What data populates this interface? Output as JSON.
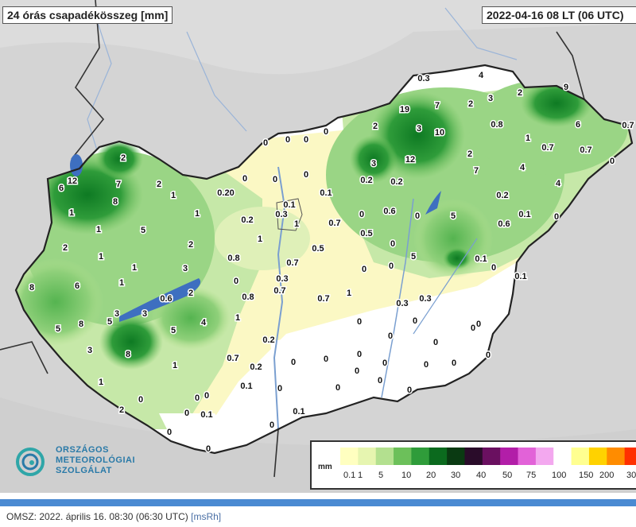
{
  "map": {
    "title": "24 órás csapadékösszeg [mm]",
    "timestamp": "2022-04-16 08 LT  (06 UTC)",
    "stations": [
      {
        "v": "0.3"
      },
      {
        "v": "4"
      },
      {
        "v": "9"
      },
      {
        "v": "19"
      },
      {
        "v": "7"
      },
      {
        "v": "2"
      },
      {
        "v": "3"
      },
      {
        "v": "2"
      },
      {
        "v": "3"
      },
      {
        "v": "10"
      },
      {
        "v": "0.8"
      },
      {
        "v": "6"
      },
      {
        "v": "0.7"
      },
      {
        "v": "1"
      },
      {
        "v": "0.7"
      },
      {
        "v": "0.7"
      },
      {
        "v": "0"
      },
      {
        "v": "0"
      },
      {
        "v": "0"
      },
      {
        "v": "0"
      },
      {
        "v": "2"
      },
      {
        "v": "12"
      },
      {
        "v": "2"
      },
      {
        "v": "0"
      },
      {
        "v": "4"
      },
      {
        "v": "3"
      },
      {
        "v": "0"
      },
      {
        "v": "0"
      },
      {
        "v": "0"
      },
      {
        "v": "0.2"
      },
      {
        "v": "0.2"
      },
      {
        "v": "7"
      },
      {
        "v": "4"
      },
      {
        "v": "2"
      },
      {
        "v": "12"
      },
      {
        "v": "6"
      },
      {
        "v": "7"
      },
      {
        "v": "2"
      },
      {
        "v": "0.20"
      },
      {
        "v": "0.1"
      },
      {
        "v": "0.2"
      },
      {
        "v": "0.1"
      },
      {
        "v": "0.3"
      },
      {
        "v": "0.6"
      },
      {
        "v": "0"
      },
      {
        "v": "5"
      },
      {
        "v": "0.6"
      },
      {
        "v": "0"
      },
      {
        "v": "8"
      },
      {
        "v": "1"
      },
      {
        "v": "1"
      },
      {
        "v": "0.2"
      },
      {
        "v": "1"
      },
      {
        "v": "0.7"
      },
      {
        "v": "0"
      },
      {
        "v": "1"
      },
      {
        "v": "5"
      },
      {
        "v": "1"
      },
      {
        "v": "0.5"
      },
      {
        "v": "0.1"
      },
      {
        "v": "2"
      },
      {
        "v": "2"
      },
      {
        "v": "0.5"
      },
      {
        "v": "0"
      },
      {
        "v": "5"
      },
      {
        "v": "0.8"
      },
      {
        "v": "1"
      },
      {
        "v": "0.7"
      },
      {
        "v": "0"
      },
      {
        "v": "0"
      },
      {
        "v": "1"
      },
      {
        "v": "0"
      },
      {
        "v": "1"
      },
      {
        "v": "3"
      },
      {
        "v": "0.3"
      },
      {
        "v": "0.1"
      },
      {
        "v": "0.1"
      },
      {
        "v": "8"
      },
      {
        "v": "1"
      },
      {
        "v": "0"
      },
      {
        "v": "0.7"
      },
      {
        "v": "1"
      },
      {
        "v": "6"
      },
      {
        "v": "2"
      },
      {
        "v": "0.6"
      },
      {
        "v": "0.8"
      },
      {
        "v": "0.7"
      },
      {
        "v": "0.3"
      },
      {
        "v": "0.3"
      },
      {
        "v": "5"
      },
      {
        "v": "3"
      },
      {
        "v": "3"
      },
      {
        "v": "1"
      },
      {
        "v": "0"
      },
      {
        "v": "0"
      },
      {
        "v": "8"
      },
      {
        "v": "5"
      },
      {
        "v": "4"
      },
      {
        "v": "0"
      },
      {
        "v": "0"
      },
      {
        "v": "0"
      },
      {
        "v": "5"
      },
      {
        "v": "3"
      },
      {
        "v": "0.2"
      },
      {
        "v": "0"
      },
      {
        "v": "0"
      },
      {
        "v": "8"
      },
      {
        "v": "0.7"
      },
      {
        "v": "0"
      },
      {
        "v": "0"
      },
      {
        "v": "0"
      },
      {
        "v": "0"
      },
      {
        "v": "1"
      },
      {
        "v": "0.2"
      },
      {
        "v": "0"
      },
      {
        "v": "0"
      },
      {
        "v": "0"
      },
      {
        "v": "0"
      },
      {
        "v": "0"
      },
      {
        "v": "1"
      },
      {
        "v": "0.1"
      },
      {
        "v": "0"
      },
      {
        "v": "0"
      },
      {
        "v": "0"
      },
      {
        "v": "0"
      },
      {
        "v": "0"
      },
      {
        "v": "0"
      },
      {
        "v": "2"
      },
      {
        "v": "0"
      },
      {
        "v": "0.1"
      },
      {
        "v": "0.1"
      },
      {
        "v": "0"
      },
      {
        "v": "0.2"
      },
      {
        "v": "0"
      },
      {
        "v": "0.2"
      }
    ]
  },
  "legend": {
    "unit": "mm",
    "ticks": [
      "0.1",
      "1",
      "5",
      "10",
      "20",
      "30",
      "40",
      "50",
      "75",
      "100",
      "150",
      "200",
      "30"
    ],
    "colors": [
      "#ffffc0",
      "#e6f5b0",
      "#b3e08f",
      "#6cc05a",
      "#2f9c3a",
      "#0b6a1e",
      "#0a3a12",
      "#2a0c2a",
      "#6a1060",
      "#b21ea8",
      "#e262d8",
      "#f3a8ef",
      "#ffffff",
      "#ffff90",
      "#ffd200",
      "#ff8c00",
      "#ff3000"
    ]
  },
  "logo": {
    "line1": "ORSZÁGOS",
    "line2": "METEOROLÓGIAI",
    "line3": "SZOLGÁLAT",
    "color": "#2a7aa8"
  },
  "footer": {
    "text": "OMSZ: 2022. április 16. 08:30 (06:30  UTC)",
    "source": "[msRh]"
  }
}
